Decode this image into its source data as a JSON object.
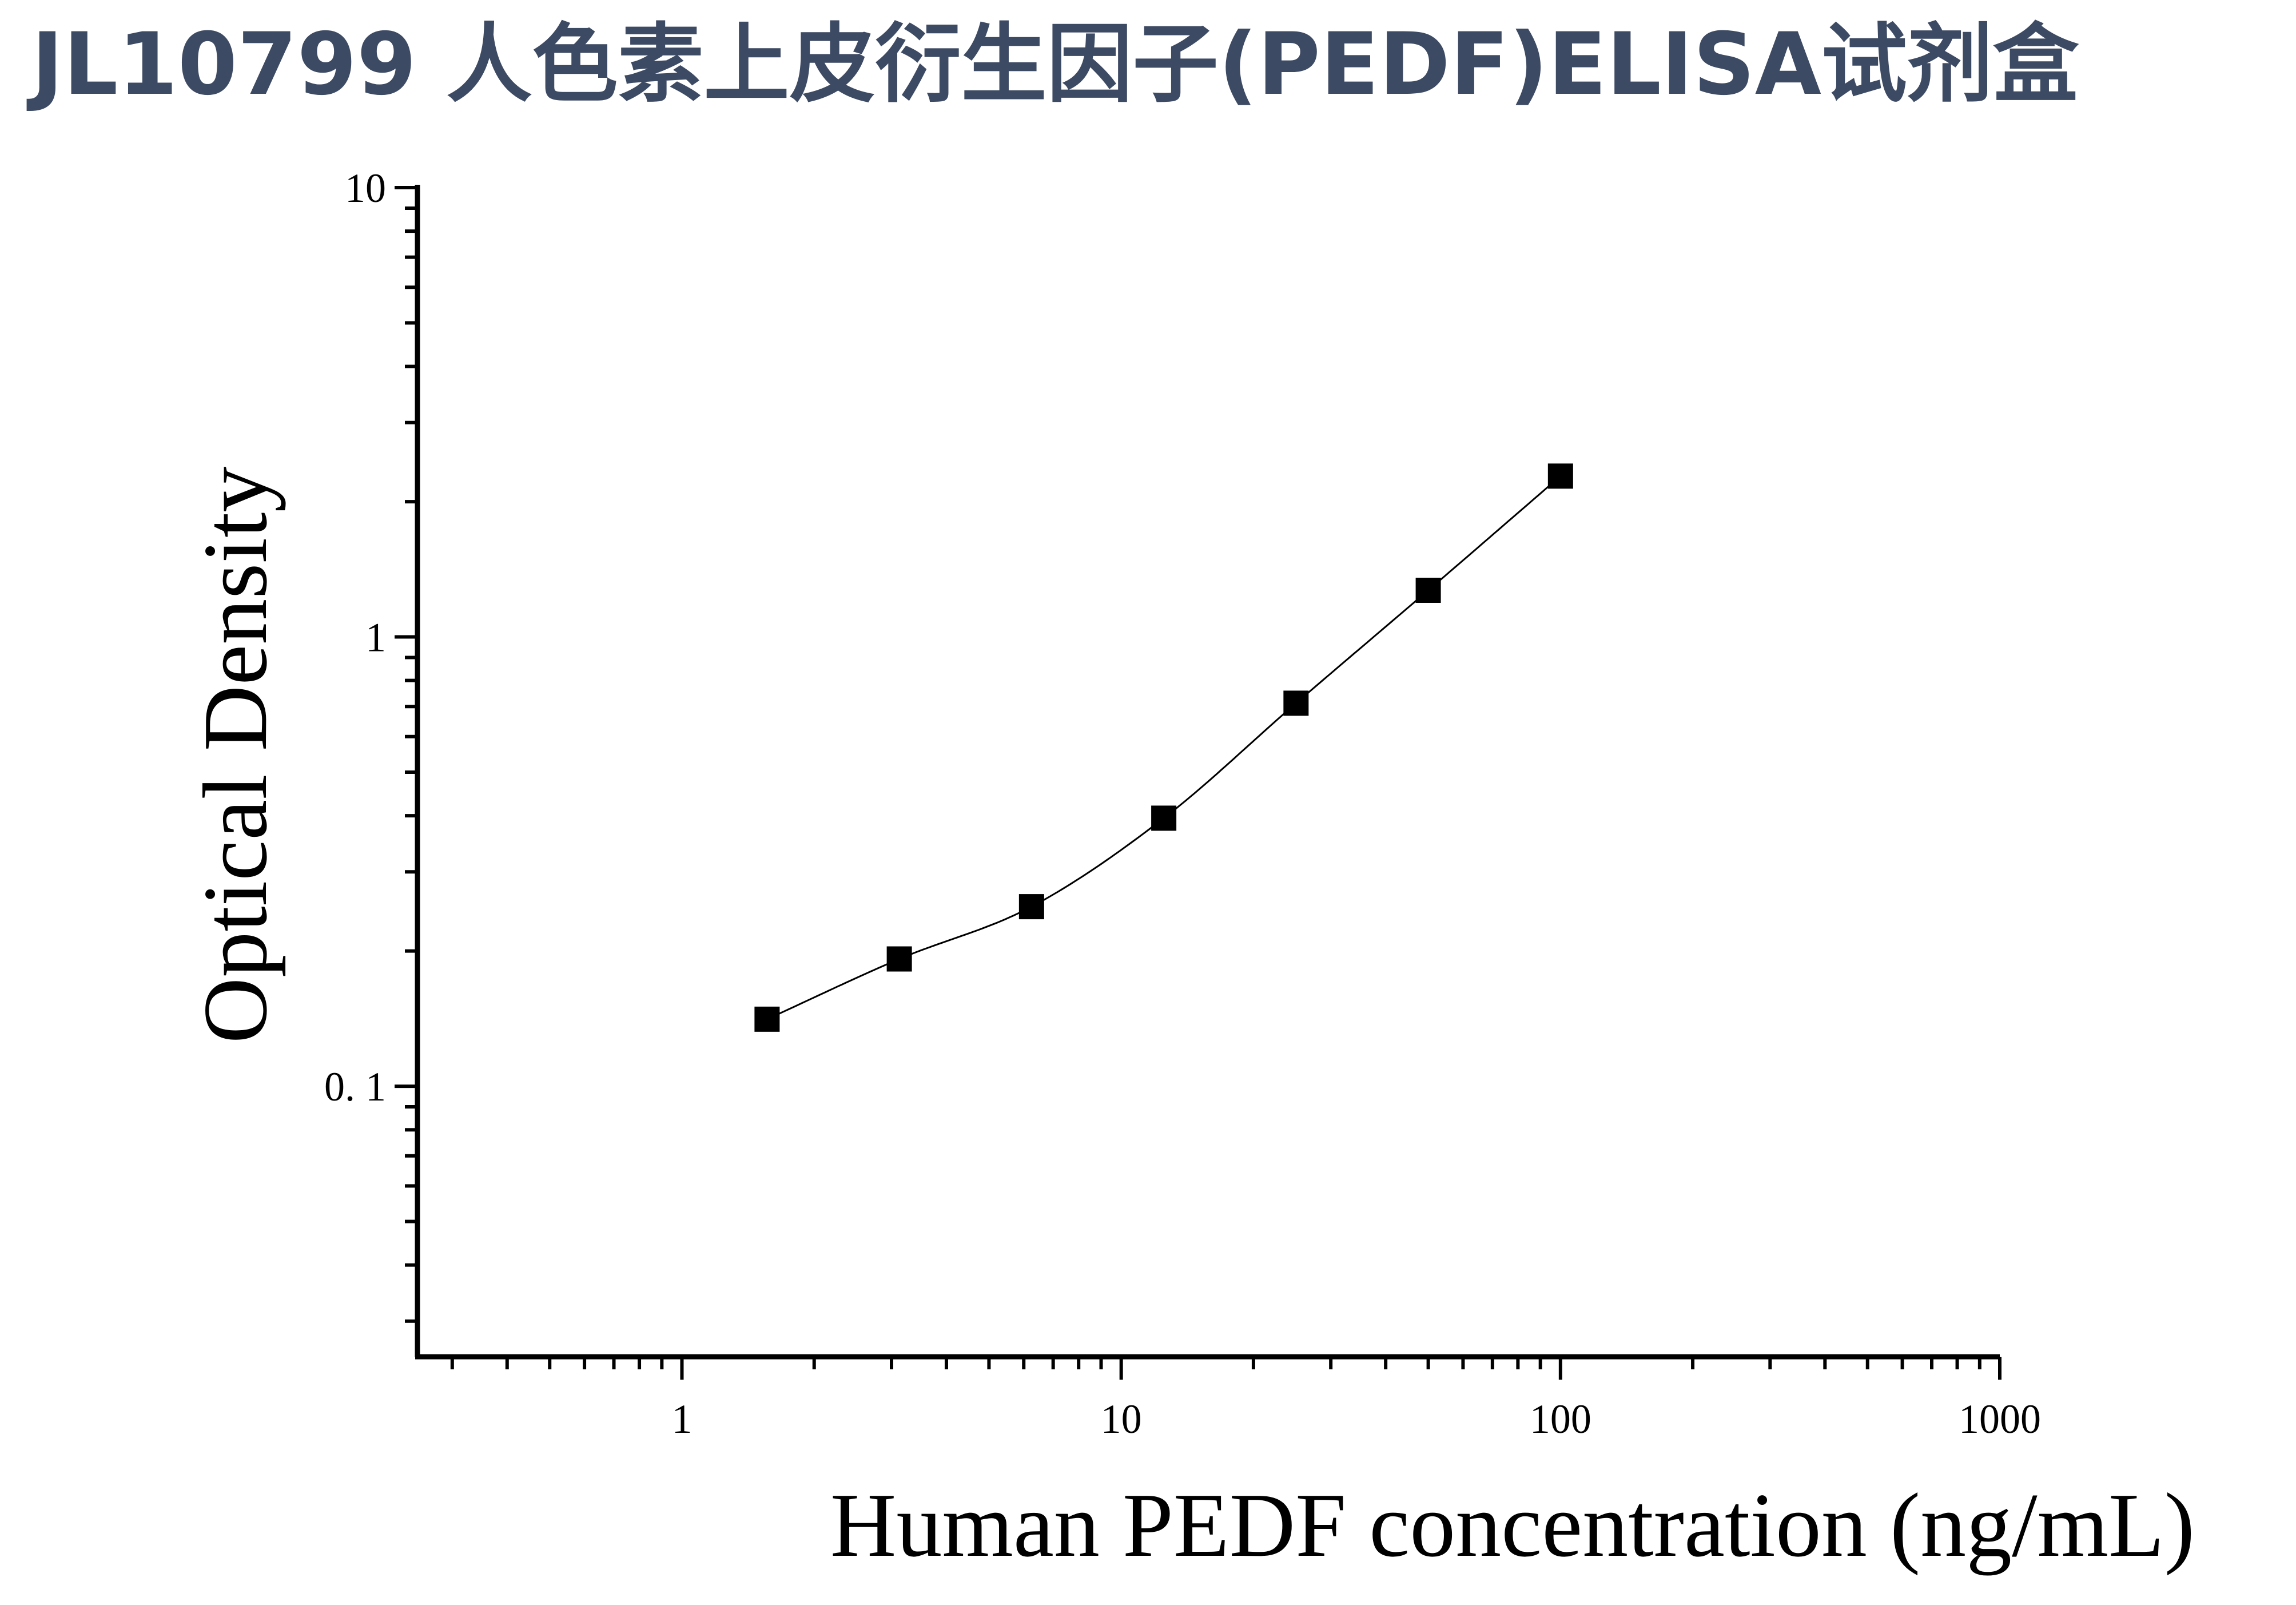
{
  "title": "JL10799 人色素上皮衍生因子(PEDF)ELISA试剂盒",
  "chart_data": {
    "type": "scatter",
    "xlabel": "Human PEDF concentration (ng/mL)",
    "ylabel": "Optical Density",
    "xscale": "log",
    "yscale": "log",
    "xlim": [
      0.25,
      1000
    ],
    "ylim": [
      0.025,
      10
    ],
    "xticks": [
      "1",
      "10",
      "100",
      "1000"
    ],
    "yticks": [
      "0. 1",
      "1",
      "10"
    ],
    "grid": false,
    "marker": "square",
    "series": [
      {
        "x": [
          1.5625,
          3.125,
          6.25,
          12.5,
          25,
          50,
          100
        ],
        "y": [
          0.141,
          0.192,
          0.251,
          0.395,
          0.712,
          1.27,
          2.28
        ]
      }
    ],
    "fit_curve": true,
    "colors": {
      "marker": "#000000",
      "curve": "#000000",
      "title": "#3d4a63"
    }
  }
}
